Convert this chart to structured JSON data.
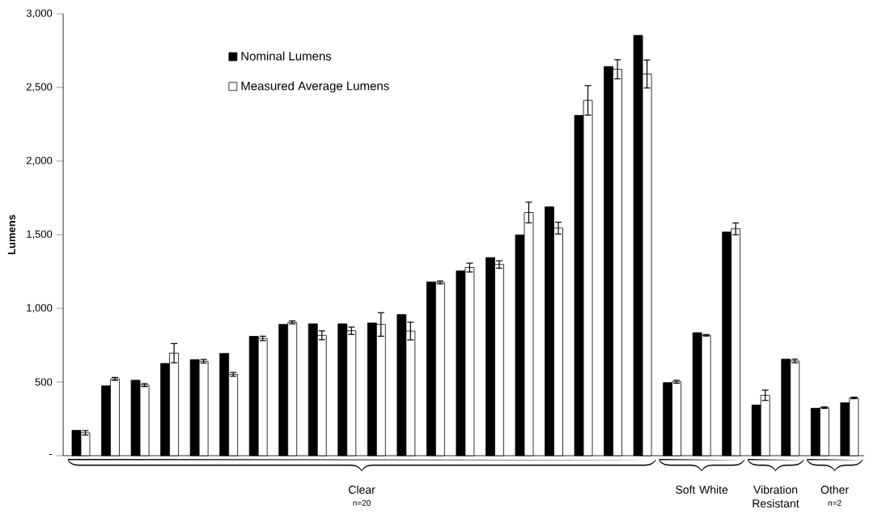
{
  "chart_data": {
    "type": "bar",
    "ylabel": "Lumens",
    "categories": [
      null,
      null,
      null,
      null,
      null,
      null,
      null,
      null,
      null,
      null,
      null,
      null,
      null,
      null,
      null,
      null,
      null,
      null,
      null,
      null,
      null,
      null,
      null,
      null,
      null,
      null,
      null
    ],
    "series": [
      {
        "name": "Nominal Lumens",
        "color": "#000000",
        "values": [
          172,
          474,
          512,
          626,
          652,
          694,
          810,
          891,
          895,
          895,
          901,
          958,
          1180,
          1254,
          1345,
          1499,
          1689,
          2310,
          2642,
          2853,
          496,
          835,
          1518,
          344,
          655,
          322,
          359
        ]
      },
      {
        "name": "Measured Average Lumens",
        "color": "#ffffff",
        "values": [
          155,
          521,
          479,
          696,
          641,
          552,
          796,
          905,
          817,
          848,
          891,
          846,
          1176,
          1277,
          1298,
          1651,
          1545,
          2412,
          2623,
          2591,
          502,
          817,
          1540,
          410,
          643,
          326,
          392
        ],
        "errors": [
          15,
          10,
          10,
          65,
          12,
          13,
          15,
          10,
          30,
          25,
          80,
          60,
          10,
          30,
          25,
          70,
          40,
          100,
          65,
          95,
          10,
          5,
          40,
          35,
          12,
          5,
          5
        ]
      }
    ],
    "ylim": [
      0,
      3000
    ],
    "yticks": [
      {
        "value": 0,
        "label": "-"
      },
      500,
      {
        "value": 1000,
        "label": "1,000"
      },
      {
        "value": 1500,
        "label": "1,500"
      },
      {
        "value": 2000,
        "label": "2,000"
      },
      {
        "value": 2500,
        "label": "2,500"
      },
      {
        "value": 3000,
        "label": "3,000"
      }
    ],
    "legend": "top left",
    "annotations": [
      "Clear",
      "n=20",
      "Soft White",
      "Vibration Resistant",
      "Other",
      "n=2"
    ]
  }
}
